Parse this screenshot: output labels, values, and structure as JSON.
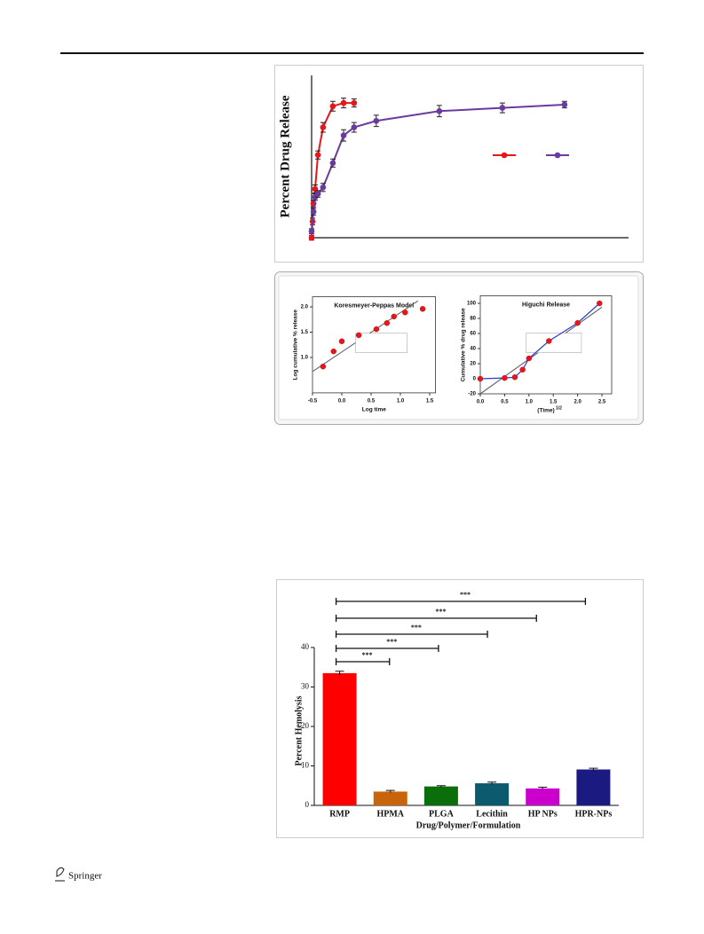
{
  "chart_data": [
    {
      "type": "line",
      "y_label": "Percent Drug Release",
      "xlim": [
        0,
        100
      ],
      "ylim": [
        0,
        100
      ],
      "series": [
        {
          "color": "#e8161b",
          "x": [
            0,
            0.3,
            0.6,
            1.1,
            2,
            3.6,
            6.7,
            10.1,
            13.4
          ],
          "values": [
            0,
            10,
            21,
            30,
            51,
            68,
            81,
            83,
            83
          ],
          "errors": [
            1.5,
            2,
            2,
            2.5,
            2.5,
            3,
            3,
            3,
            2.5
          ]
        },
        {
          "color": "#6a3aa0",
          "x": [
            0,
            0.6,
            1.1,
            2,
            3.6,
            6.7,
            10.1,
            13.4,
            20.4,
            40.3,
            60.2,
            79.8
          ],
          "values": [
            4,
            16,
            25,
            27,
            31,
            46,
            63,
            68,
            72,
            78,
            80,
            82
          ],
          "errors": [
            1.5,
            2,
            2,
            2,
            2.5,
            2.5,
            3.5,
            3,
            3.5,
            3.5,
            3,
            2
          ]
        }
      ]
    },
    {
      "type": "scatter",
      "title": "Koresmeyer-Peppas Model",
      "x_label": "Log time",
      "y_label": "Log cumulative % release",
      "xlim": [
        -0.5,
        1.6
      ],
      "ylim": [
        0.3,
        2.2
      ],
      "xticks": [
        -0.5,
        {
          "value": 0,
          "label": "0.0"
        },
        0.5,
        {
          "value": 1,
          "label": "1.0"
        },
        1.5
      ],
      "yticks": [
        {
          "value": 1,
          "label": "1.0"
        },
        1.5,
        {
          "value": 2,
          "label": "2.0"
        }
      ],
      "series": [
        {
          "color": "#e8161b",
          "x": [
            -0.32,
            -0.14,
            0,
            0.29,
            0.59,
            0.77,
            0.89,
            1.08,
            1.38
          ],
          "values": [
            0.82,
            1.12,
            1.32,
            1.44,
            1.56,
            1.68,
            1.81,
            1.89,
            1.96
          ]
        }
      ],
      "fit": {
        "color": "#666666",
        "x": [
          -0.5,
          1.3
        ],
        "y": [
          0.72,
          2.12
        ]
      }
    },
    {
      "type": "scatter",
      "title": "Higuchi Release",
      "x_label": "(Time)",
      "x_label_sup": "1/2",
      "y_label": "Cumulative % drug release",
      "xlim": [
        0,
        2.7
      ],
      "ylim": [
        -20,
        110
      ],
      "xticks": [
        {
          "value": 0,
          "label": "0.0"
        },
        0.5,
        {
          "value": 1,
          "label": "1.0"
        },
        1.5,
        {
          "value": 2,
          "label": "2.0"
        },
        2.5
      ],
      "yticks": [
        -20,
        0,
        20,
        40,
        60,
        80,
        100
      ],
      "series": [
        {
          "color": "#e8161b",
          "line_color": "#2a3ad0",
          "x": [
            0,
            0.5,
            0.71,
            0.87,
            1,
            1.41,
            2,
            2.45
          ],
          "values": [
            0,
            1,
            2,
            12,
            27,
            50,
            74,
            100
          ]
        }
      ],
      "fit": {
        "color": "#666666",
        "x": [
          0,
          2.5
        ],
        "y": [
          -20,
          95
        ]
      }
    },
    {
      "type": "bar",
      "y_label": "Percent Hemolysis",
      "x_label": "Drug/Polymer/Formulation",
      "categories": [
        "RMP",
        "HPMA",
        "PLGA",
        "Lecithin",
        "HP NPs",
        "HPR-NPs"
      ],
      "values": [
        33.5,
        3.5,
        4.8,
        5.6,
        4.3,
        9.1
      ],
      "errors": [
        0.5,
        0.3,
        0.2,
        0.3,
        0.3,
        0.3
      ],
      "colors": [
        "#ff0000",
        "#c8650c",
        "#0a6e0a",
        "#0b5a6e",
        "#cc00cc",
        "#1a1a80"
      ],
      "ylim": [
        0,
        40
      ],
      "yticks": [
        0,
        10,
        20,
        30,
        40
      ],
      "significance_labels": [
        "***",
        "***",
        "***",
        "***",
        "***"
      ]
    }
  ],
  "footer": {
    "publisher": "Springer"
  }
}
